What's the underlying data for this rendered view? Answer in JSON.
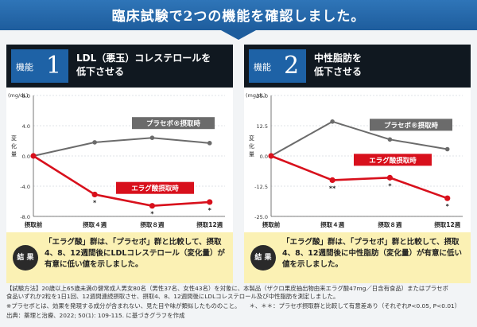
{
  "header": {
    "title": "臨床試験で2つの機能を確認しました。"
  },
  "panels": [
    {
      "badge_label": "機能",
      "badge_number": "1",
      "title_line1": "LDL（悪玉）コレステロールを",
      "title_line2": "低下させる",
      "result_badge": "結 果",
      "result_text": "「エラグ酸」群は、「プラセボ」群と比較して、摂取4、8、12週間後にLDLコレステロール（変化量）が有意に低い値を示しました。"
    },
    {
      "badge_label": "機能",
      "badge_number": "2",
      "title_line1": "中性脂肪を",
      "title_line2": "低下させる",
      "result_badge": "結 果",
      "result_text": "「エラグ酸」群は、「プラセボ」群と比較して、摂取4、8、12週間後に中性脂肪（変化量）が有意に低い値を示しました。"
    }
  ],
  "chart_data": [
    {
      "type": "line",
      "unit": "(mg/dL)",
      "ylabel": "変化量",
      "ylim": [
        -8.0,
        8.0
      ],
      "yticks": [
        "8.0",
        "4.0",
        "0.0",
        "-4.0",
        "-8.0"
      ],
      "categories": [
        "摂取前",
        "摂取４週",
        "摂取８週",
        "摂取12週"
      ],
      "series": [
        {
          "name": "プラセボ®摂取時",
          "color": "#6b6b6b",
          "values": [
            0.0,
            1.8,
            2.4,
            1.7
          ]
        },
        {
          "name": "エラグ酸摂取時",
          "color": "#d8101c",
          "values": [
            0.0,
            -5.1,
            -6.6,
            -6.1
          ],
          "marks": [
            "",
            "*",
            "*",
            "*"
          ]
        }
      ]
    },
    {
      "type": "line",
      "unit": "(mg/dL)",
      "ylabel": "変化量",
      "ylim": [
        -25.0,
        25.0
      ],
      "yticks": [
        "25.0",
        "12.5",
        "0.0",
        "-12.5",
        "-25.0"
      ],
      "categories": [
        "摂取前",
        "摂取４週",
        "摂取８週",
        "摂取12週"
      ],
      "series": [
        {
          "name": "プラセボ®摂取時",
          "color": "#6b6b6b",
          "values": [
            0.0,
            14.2,
            6.8,
            2.8
          ]
        },
        {
          "name": "エラグ酸摂取時",
          "color": "#d8101c",
          "values": [
            0.0,
            -10.0,
            -9.0,
            -17.5
          ],
          "marks": [
            "",
            "**",
            "*",
            "*"
          ]
        }
      ]
    }
  ],
  "footer": {
    "line1": "【試験方法】20歳以上65歳未満の健常成人男女80名（男性37名、女性43名）を対象に、本製品（ザクロ果皮抽出物由来エラグ酸47mg／日含有食品）またはプラセボ",
    "line2": "食品いずれか2粒を1日1回、12週間連続摂取させ、摂取4、8、12週間後にLDLコレステロール及び中性脂肪を測定しました。",
    "line3": "※プラセボとは、効果を発現する成分が含まれない、見た目や味が類似したもののこと。　　＊、＊＊：プラセボ摂取群と比較して有意差あり（それぞれP<0.05, P<0.01）",
    "line4": "出典：薬理と治療、2022; 50(1): 109-115. に基づきグラフを作成"
  },
  "colors": {
    "header": "#1e5d9d",
    "badge": "#1e62a6",
    "placebo": "#6b6b6b",
    "ellagic": "#d8101c",
    "result_bg": "#fbf1b4"
  }
}
